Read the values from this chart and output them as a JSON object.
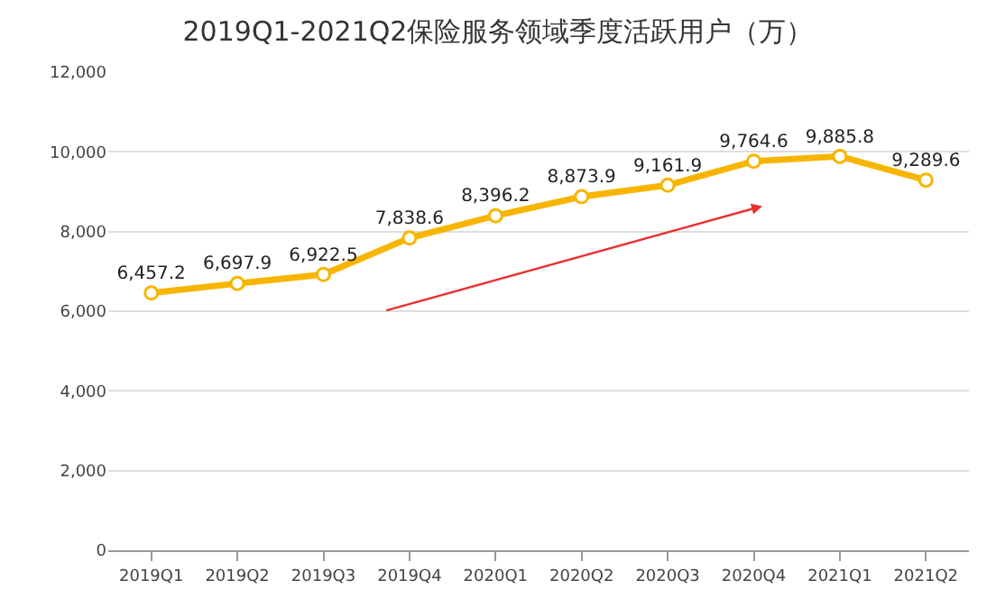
{
  "chart_data": {
    "type": "line",
    "title": "2019Q1-2021Q2保险服务领域季度活跃用户（万）",
    "categories": [
      "2019Q1",
      "2019Q2",
      "2019Q3",
      "2019Q4",
      "2020Q1",
      "2020Q2",
      "2020Q3",
      "2020Q4",
      "2021Q1",
      "2021Q2"
    ],
    "series": [
      {
        "color": "#f7b500",
        "values": [
          6457.2,
          6697.9,
          6922.5,
          7838.6,
          8396.2,
          8873.9,
          9161.9,
          9764.6,
          9885.8,
          9289.6
        ],
        "value_labels": [
          "6,457.2",
          "6,697.9",
          "6,922.5",
          "7,838.6",
          "8,396.2",
          "8,873.9",
          "9,161.9",
          "9,764.6",
          "9,885.8",
          "9,289.6"
        ]
      }
    ],
    "ylim": [
      0,
      12000
    ],
    "yticks": [
      {
        "value": 0,
        "label": "0"
      },
      {
        "value": 2000,
        "label": "2,000"
      },
      {
        "value": 4000,
        "label": "4,000"
      },
      {
        "value": 6000,
        "label": "6,000"
      },
      {
        "value": 8000,
        "label": "8,000"
      },
      {
        "value": 10000,
        "label": "10,000"
      },
      {
        "value": 12000,
        "label": "12,000"
      }
    ],
    "grid": "y",
    "marker": "circle",
    "line_style": "solid"
  }
}
